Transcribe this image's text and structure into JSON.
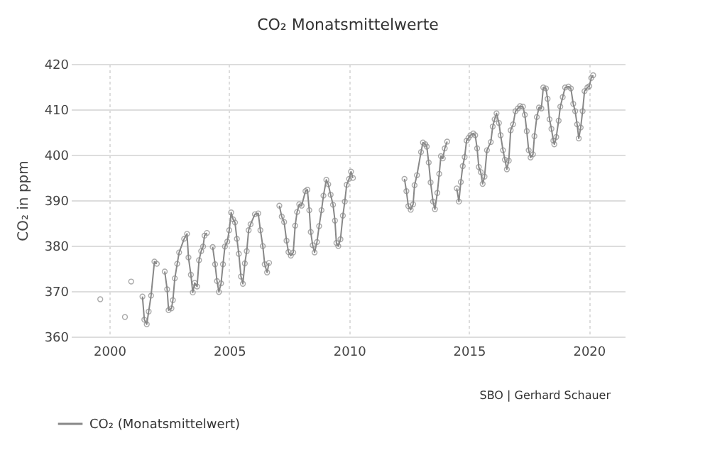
{
  "chart_data": {
    "type": "line",
    "title": "CO₂ Monatsmittelwerte",
    "ylabel": "CO₂  in ppm",
    "annotations": [
      "SBO | Gerhard Schauer"
    ],
    "xlim": [
      1998.4,
      2021.5
    ],
    "xticks": [
      2000,
      2005,
      2010,
      2015,
      2020
    ],
    "ylim": [
      360,
      420
    ],
    "yticks": [
      360,
      370,
      380,
      390,
      400,
      410,
      420
    ],
    "grid": true,
    "legend": "bottom left",
    "marker": "circle",
    "line_style": "solid",
    "series": [
      {
        "name": "CO₂  (Monatsmittelwert)",
        "color": "#888888",
        "x": [
          1999.62,
          2000.1,
          2000.65,
          2000.8,
          2000.91,
          2001.2,
          2001.38,
          2001.46,
          2001.56,
          2001.64,
          2001.74,
          2001.88,
          2001.98,
          2002.15,
          2002.31,
          2002.41,
          2002.47,
          2002.59,
          2002.65,
          2002.73,
          2002.83,
          2002.91,
          2003.12,
          2003.24,
          2003.3,
          2003.4,
          2003.48,
          2003.56,
          2003.66,
          2003.74,
          2003.83,
          2003.91,
          2003.97,
          2004.07,
          2004.2,
          2004.31,
          2004.41,
          2004.49,
          2004.57,
          2004.66,
          2004.74,
          2004.82,
          2004.92,
          2005.0,
          2005.08,
          2005.16,
          2005.24,
          2005.32,
          2005.4,
          2005.49,
          2005.57,
          2005.65,
          2005.73,
          2005.81,
          2005.89,
          2006.07,
          2006.21,
          2006.3,
          2006.4,
          2006.48,
          2006.58,
          2006.66,
          2006.9,
          2007.09,
          2007.19,
          2007.29,
          2007.39,
          2007.47,
          2007.57,
          2007.67,
          2007.75,
          2007.83,
          2007.92,
          2008.02,
          2008.18,
          2008.26,
          2008.34,
          2008.4,
          2008.48,
          2008.56,
          2008.66,
          2008.75,
          2008.85,
          2008.93,
          2009.05,
          2009.13,
          2009.23,
          2009.33,
          2009.41,
          2009.47,
          2009.55,
          2009.64,
          2009.74,
          2009.82,
          2009.9,
          2010.0,
          2010.08,
          2010.16,
          2011.2,
          2012.31,
          2012.39,
          2012.47,
          2012.57,
          2012.67,
          2012.73,
          2012.83,
          2013.0,
          2013.08,
          2013.18,
          2013.24,
          2013.32,
          2013.4,
          2013.5,
          2013.58,
          2013.68,
          2013.76,
          2013.83,
          2013.91,
          2013.99,
          2014.09,
          2014.3,
          2014.49,
          2014.58,
          2014.66,
          2014.74,
          2014.82,
          2014.9,
          2014.98,
          2015.06,
          2015.18,
          2015.26,
          2015.34,
          2015.41,
          2015.49,
          2015.57,
          2015.65,
          2015.75,
          2015.91,
          2015.99,
          2016.07,
          2016.15,
          2016.25,
          2016.32,
          2016.42,
          2016.5,
          2016.58,
          2016.66,
          2016.74,
          2016.84,
          2016.94,
          2017.04,
          2017.13,
          2017.25,
          2017.33,
          2017.41,
          2017.49,
          2017.57,
          2017.67,
          2017.73,
          2017.83,
          2017.92,
          2018.02,
          2018.1,
          2018.21,
          2018.28,
          2018.36,
          2018.44,
          2018.52,
          2018.56,
          2018.64,
          2018.74,
          2018.81,
          2018.91,
          2019.01,
          2019.15,
          2019.25,
          2019.35,
          2019.43,
          2019.51,
          2019.58,
          2019.66,
          2019.74,
          2019.82,
          2019.94,
          2020.02,
          2020.1,
          2020.18
        ],
        "values": [
          368.2,
          null,
          364.3,
          null,
          372.1,
          null,
          368.8,
          363.7,
          362.7,
          365.5,
          369.0,
          376.5,
          376.0,
          null,
          374.3,
          370.4,
          365.8,
          366.2,
          368.0,
          372.8,
          376.0,
          378.5,
          381.5,
          382.6,
          377.4,
          373.6,
          369.7,
          371.8,
          371.0,
          376.8,
          378.8,
          379.8,
          382.2,
          382.8,
          null,
          379.7,
          375.9,
          372.2,
          369.8,
          371.7,
          375.9,
          379.8,
          380.9,
          383.4,
          387.3,
          385.8,
          385.1,
          381.5,
          378.2,
          373.2,
          371.6,
          376.1,
          378.8,
          383.4,
          384.7,
          386.9,
          387.1,
          383.4,
          379.9,
          375.9,
          374.1,
          376.2,
          null,
          388.8,
          386.4,
          385.2,
          381.1,
          378.6,
          377.8,
          378.5,
          384.4,
          387.4,
          389.1,
          388.8,
          392.0,
          392.3,
          387.8,
          383.0,
          380.1,
          378.5,
          380.8,
          384.3,
          387.8,
          391.0,
          394.5,
          393.5,
          391.2,
          389.0,
          385.5,
          380.6,
          379.9,
          381.4,
          386.6,
          389.7,
          393.4,
          394.7,
          396.3,
          394.9,
          null,
          394.7,
          392.0,
          388.7,
          387.9,
          389.1,
          393.3,
          395.5,
          400.6,
          402.7,
          402.3,
          401.8,
          398.3,
          393.9,
          389.7,
          388.0,
          391.6,
          395.8,
          399.7,
          399.2,
          401.4,
          402.9,
          null,
          392.6,
          389.7,
          394.0,
          397.5,
          399.5,
          403.1,
          403.7,
          404.3,
          404.7,
          404.3,
          401.4,
          397.3,
          396.2,
          393.6,
          395.2,
          401.0,
          402.8,
          406.2,
          407.8,
          409.1,
          407.0,
          404.3,
          401.0,
          398.9,
          396.8,
          398.7,
          405.4,
          406.7,
          409.6,
          410.2,
          410.7,
          410.6,
          408.8,
          405.2,
          401.0,
          399.4,
          400.1,
          404.1,
          408.3,
          410.4,
          410.2,
          414.8,
          414.6,
          412.3,
          407.8,
          405.7,
          403.1,
          402.3,
          403.9,
          407.5,
          410.6,
          412.7,
          414.8,
          415.0,
          414.6,
          411.2,
          409.6,
          406.7,
          403.6,
          406.0,
          409.6,
          414.0,
          414.8,
          415.1,
          416.9,
          417.5
        ]
      }
    ]
  }
}
